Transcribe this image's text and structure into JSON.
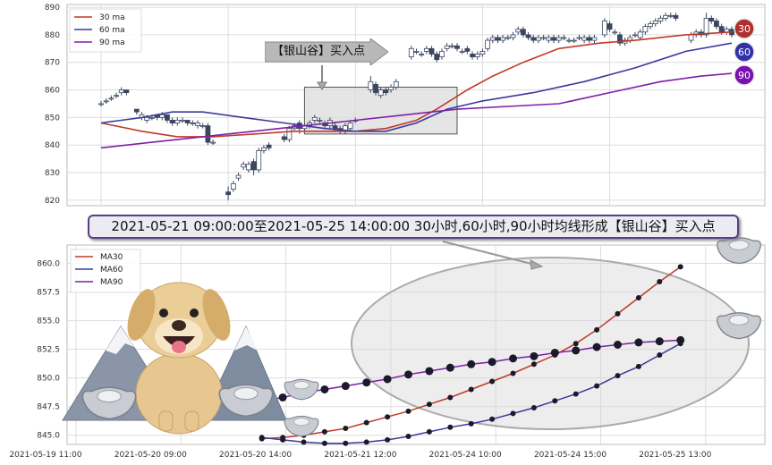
{
  "banner_text": "2021-05-21 09:00:00至2021-05-25 14:00:00 30小时,60小时,90小时均线形成【银山谷】买入点",
  "callout_text": "【银山谷】买入点",
  "badges": [
    {
      "label": "30",
      "color": "#b03030"
    },
    {
      "label": "60",
      "color": "#3232a8"
    },
    {
      "label": "90",
      "color": "#7a10b0"
    }
  ],
  "colors": {
    "ma30": "#c0392b",
    "ma60": "#3a3a9e",
    "ma90": "#7d1fa8",
    "candle": "#3b4660",
    "grid": "#dddddd",
    "highlight_box": "#dcdcdc"
  },
  "icons": [
    "dog-icon",
    "mountain-icon",
    "silver-ingot-icon"
  ],
  "chart_data": [
    {
      "type": "candlestick",
      "ylim": [
        818,
        891
      ],
      "yticks": [
        820,
        830,
        840,
        850,
        860,
        870,
        880,
        890
      ],
      "n_bars": 125,
      "legend": {
        "placement": "top-left",
        "entries": [
          "30 ma",
          "60 ma",
          "90 ma"
        ]
      },
      "grid": true,
      "highlight_region": {
        "bar_start": 40,
        "bar_end": 70,
        "y_low": 844,
        "y_high": 861
      },
      "candles": [
        [
          0,
          855,
          855,
          856,
          854
        ],
        [
          1,
          856,
          856,
          857,
          855
        ],
        [
          2,
          857,
          857,
          858,
          856
        ],
        [
          3,
          858,
          858,
          859,
          857
        ],
        [
          4,
          859,
          860,
          861,
          858
        ],
        [
          5,
          860,
          859,
          860,
          858
        ],
        [
          7,
          853,
          852,
          853,
          851
        ],
        [
          8,
          850,
          851,
          852,
          849
        ],
        [
          9,
          849,
          850,
          851,
          848
        ],
        [
          10,
          850,
          850,
          851,
          849
        ],
        [
          11,
          851,
          850,
          851,
          849
        ],
        [
          12,
          850,
          851,
          852,
          849
        ],
        [
          13,
          851,
          849,
          851,
          848
        ],
        [
          14,
          849,
          848,
          850,
          847
        ],
        [
          15,
          848,
          849,
          850,
          847
        ],
        [
          16,
          849,
          849,
          850,
          848
        ],
        [
          17,
          849,
          848,
          849,
          847
        ],
        [
          18,
          848,
          848,
          849,
          847
        ],
        [
          19,
          847,
          848,
          849,
          846
        ],
        [
          20,
          847,
          847,
          848,
          846
        ],
        [
          21,
          847,
          841,
          848,
          840
        ],
        [
          22,
          841,
          841,
          842,
          840
        ],
        [
          25,
          823,
          822,
          825,
          820
        ],
        [
          26,
          824,
          826,
          827,
          823
        ],
        [
          27,
          828,
          829,
          830,
          827
        ],
        [
          28,
          832,
          833,
          834,
          831
        ],
        [
          29,
          831,
          833,
          834,
          830
        ],
        [
          30,
          834,
          831,
          835,
          829
        ],
        [
          31,
          831,
          838,
          839,
          830
        ],
        [
          32,
          838,
          839,
          840,
          837
        ],
        [
          33,
          840,
          839,
          841,
          838
        ],
        [
          36,
          843,
          842,
          844,
          841
        ],
        [
          37,
          842,
          846,
          847,
          841
        ],
        [
          38,
          846,
          847,
          848,
          845
        ],
        [
          39,
          848,
          846,
          849,
          844
        ],
        [
          40,
          846,
          847,
          848,
          845
        ],
        [
          41,
          847,
          848,
          849,
          846
        ],
        [
          42,
          849,
          850,
          851,
          848
        ],
        [
          43,
          849,
          849,
          850,
          848
        ],
        [
          44,
          848,
          847,
          849,
          846
        ],
        [
          45,
          847,
          849,
          850,
          846
        ],
        [
          46,
          847,
          846,
          848,
          845
        ],
        [
          47,
          846,
          845,
          847,
          844
        ],
        [
          48,
          845,
          847,
          848,
          844
        ],
        [
          49,
          846,
          848,
          849,
          845
        ],
        [
          50,
          849,
          849,
          850,
          848
        ],
        [
          53,
          860,
          863,
          865,
          859
        ],
        [
          54,
          862,
          859,
          863,
          858
        ],
        [
          55,
          858,
          860,
          861,
          857
        ],
        [
          56,
          860,
          859,
          861,
          858
        ],
        [
          57,
          860,
          861,
          862,
          859
        ],
        [
          58,
          861,
          863,
          864,
          860
        ],
        [
          61,
          872,
          875,
          876,
          871
        ],
        [
          62,
          874,
          874,
          875,
          873
        ],
        [
          63,
          873,
          873,
          874,
          872
        ],
        [
          64,
          874,
          875,
          876,
          873
        ],
        [
          65,
          875,
          873,
          876,
          872
        ],
        [
          66,
          873,
          871,
          874,
          870
        ],
        [
          67,
          872,
          874,
          875,
          871
        ],
        [
          68,
          875,
          876,
          877,
          874
        ],
        [
          69,
          876,
          876,
          877,
          875
        ],
        [
          70,
          876,
          875,
          877,
          874
        ],
        [
          71,
          874,
          874,
          875,
          873
        ],
        [
          72,
          875,
          874,
          876,
          873
        ],
        [
          73,
          873,
          872,
          874,
          871
        ],
        [
          74,
          872,
          873,
          874,
          871
        ],
        [
          75,
          873,
          874,
          875,
          872
        ],
        [
          76,
          875,
          878,
          879,
          874
        ],
        [
          77,
          878,
          879,
          880,
          877
        ],
        [
          78,
          879,
          878,
          880,
          877
        ],
        [
          79,
          878,
          879,
          880,
          877
        ],
        [
          80,
          879,
          879,
          880,
          878
        ],
        [
          81,
          879,
          880,
          881,
          878
        ],
        [
          82,
          881,
          882,
          883,
          880
        ],
        [
          83,
          882,
          880,
          883,
          879
        ],
        [
          84,
          880,
          879,
          881,
          878
        ],
        [
          85,
          879,
          878,
          880,
          877
        ],
        [
          86,
          878,
          879,
          880,
          877
        ],
        [
          87,
          879,
          879,
          880,
          878
        ],
        [
          88,
          878,
          879,
          880,
          877
        ],
        [
          89,
          879,
          878,
          880,
          877
        ],
        [
          90,
          878,
          879,
          880,
          877
        ],
        [
          91,
          879,
          879,
          880,
          878
        ],
        [
          92,
          878,
          878,
          879,
          877
        ],
        [
          93,
          878,
          878,
          879,
          877
        ],
        [
          94,
          879,
          879,
          880,
          878
        ],
        [
          95,
          878,
          879,
          880,
          877
        ],
        [
          96,
          879,
          878,
          880,
          877
        ],
        [
          97,
          878,
          879,
          880,
          877
        ],
        [
          99,
          880,
          885,
          886,
          879
        ],
        [
          100,
          884,
          882,
          885,
          881
        ],
        [
          101,
          881,
          881,
          882,
          880
        ],
        [
          102,
          880,
          877,
          881,
          876
        ],
        [
          103,
          877,
          878,
          879,
          876
        ],
        [
          104,
          878,
          879,
          880,
          877
        ],
        [
          105,
          880,
          880,
          881,
          879
        ],
        [
          106,
          879,
          881,
          882,
          878
        ],
        [
          107,
          881,
          883,
          884,
          880
        ],
        [
          108,
          883,
          884,
          885,
          882
        ],
        [
          109,
          884,
          885,
          886,
          883
        ],
        [
          110,
          885,
          886,
          887,
          884
        ],
        [
          111,
          886,
          887,
          888,
          885
        ],
        [
          112,
          887,
          887,
          888,
          886
        ],
        [
          113,
          887,
          886,
          888,
          885
        ],
        [
          116,
          878,
          880,
          881,
          877
        ],
        [
          117,
          880,
          881,
          882,
          879
        ],
        [
          118,
          881,
          880,
          882,
          879
        ],
        [
          119,
          880,
          886,
          888,
          879
        ],
        [
          120,
          886,
          885,
          887,
          884
        ],
        [
          121,
          885,
          883,
          886,
          882
        ],
        [
          122,
          883,
          881,
          884,
          880
        ],
        [
          123,
          881,
          882,
          883,
          880
        ],
        [
          124,
          882,
          880,
          883,
          879
        ]
      ],
      "series": [
        {
          "name": "30 ma",
          "points": [
            [
              0,
              848
            ],
            [
              8,
              845
            ],
            [
              15,
              843
            ],
            [
              22,
              843
            ],
            [
              30,
              844
            ],
            [
              38,
              845
            ],
            [
              45,
              845
            ],
            [
              50,
              845
            ],
            [
              56,
              846
            ],
            [
              62,
              849
            ],
            [
              66,
              853
            ],
            [
              72,
              860
            ],
            [
              77,
              865
            ],
            [
              83,
              870
            ],
            [
              90,
              875
            ],
            [
              98,
              877
            ],
            [
              105,
              878
            ],
            [
              115,
              880
            ],
            [
              124,
              881
            ]
          ]
        },
        {
          "name": "60 ma",
          "points": [
            [
              0,
              848
            ],
            [
              8,
              850
            ],
            [
              14,
              852
            ],
            [
              20,
              852
            ],
            [
              28,
              850
            ],
            [
              36,
              848
            ],
            [
              44,
              846
            ],
            [
              50,
              845
            ],
            [
              56,
              845
            ],
            [
              62,
              848
            ],
            [
              68,
              853
            ],
            [
              75,
              856
            ],
            [
              85,
              859
            ],
            [
              95,
              863
            ],
            [
              105,
              868
            ],
            [
              115,
              874
            ],
            [
              124,
              877
            ]
          ]
        },
        {
          "name": "90 ma",
          "points": [
            [
              0,
              839
            ],
            [
              10,
              841
            ],
            [
              20,
              843
            ],
            [
              30,
              845
            ],
            [
              40,
              847
            ],
            [
              50,
              849
            ],
            [
              60,
              851
            ],
            [
              70,
              853
            ],
            [
              80,
              854
            ],
            [
              90,
              855
            ],
            [
              100,
              859
            ],
            [
              110,
              863
            ],
            [
              118,
              865
            ],
            [
              124,
              866
            ]
          ]
        }
      ]
    },
    {
      "type": "line",
      "ylim": [
        844.2,
        861.6
      ],
      "yticks": [
        845.0,
        847.5,
        850.0,
        852.5,
        855.0,
        857.5,
        860.0
      ],
      "x_labels": [
        "2021-05-19 11:00",
        "2021-05-20 09:00",
        "2021-05-20 14:00",
        "2021-05-21 12:00",
        "2021-05-24 10:00",
        "2021-05-24 15:00",
        "2021-05-25 13:00"
      ],
      "x_label_idx": [
        0,
        10,
        20,
        30,
        40,
        50,
        60
      ],
      "legend": {
        "placement": "top-left",
        "entries": [
          "MA30",
          "MA60",
          "MA90"
        ]
      },
      "grid": true,
      "series": [
        {
          "name": "MA30",
          "x": [
            21,
            23,
            25,
            27,
            29,
            31,
            33,
            35,
            37,
            39,
            41,
            43,
            45,
            47,
            49,
            51,
            53,
            55,
            57,
            59,
            61
          ],
          "values": [
            844.7,
            844.8,
            845.0,
            845.3,
            845.6,
            846.1,
            846.6,
            847.1,
            847.7,
            848.3,
            849.0,
            849.7,
            850.4,
            851.2,
            852.0,
            853.0,
            854.2,
            855.6,
            857.0,
            858.4,
            859.7
          ]
        },
        {
          "name": "MA60",
          "x": [
            21,
            23,
            25,
            27,
            29,
            31,
            33,
            35,
            37,
            39,
            41,
            43,
            45,
            47,
            49,
            51,
            53,
            55,
            57,
            59,
            61
          ],
          "values": [
            844.8,
            844.6,
            844.4,
            844.3,
            844.3,
            844.4,
            844.6,
            844.9,
            845.3,
            845.7,
            846.0,
            846.4,
            846.9,
            847.4,
            848.0,
            848.6,
            849.3,
            850.2,
            851.0,
            852.0,
            853.0
          ]
        },
        {
          "name": "MA90",
          "x": [
            21,
            23,
            25,
            27,
            29,
            31,
            33,
            35,
            37,
            39,
            41,
            43,
            45,
            47,
            49,
            51,
            53,
            55,
            57,
            59,
            61
          ],
          "values": [
            848.0,
            848.3,
            848.7,
            849.0,
            849.3,
            849.6,
            849.9,
            850.3,
            850.6,
            850.9,
            851.2,
            851.4,
            851.7,
            851.9,
            852.2,
            852.4,
            852.7,
            852.9,
            853.1,
            853.2,
            853.3
          ]
        }
      ]
    }
  ]
}
